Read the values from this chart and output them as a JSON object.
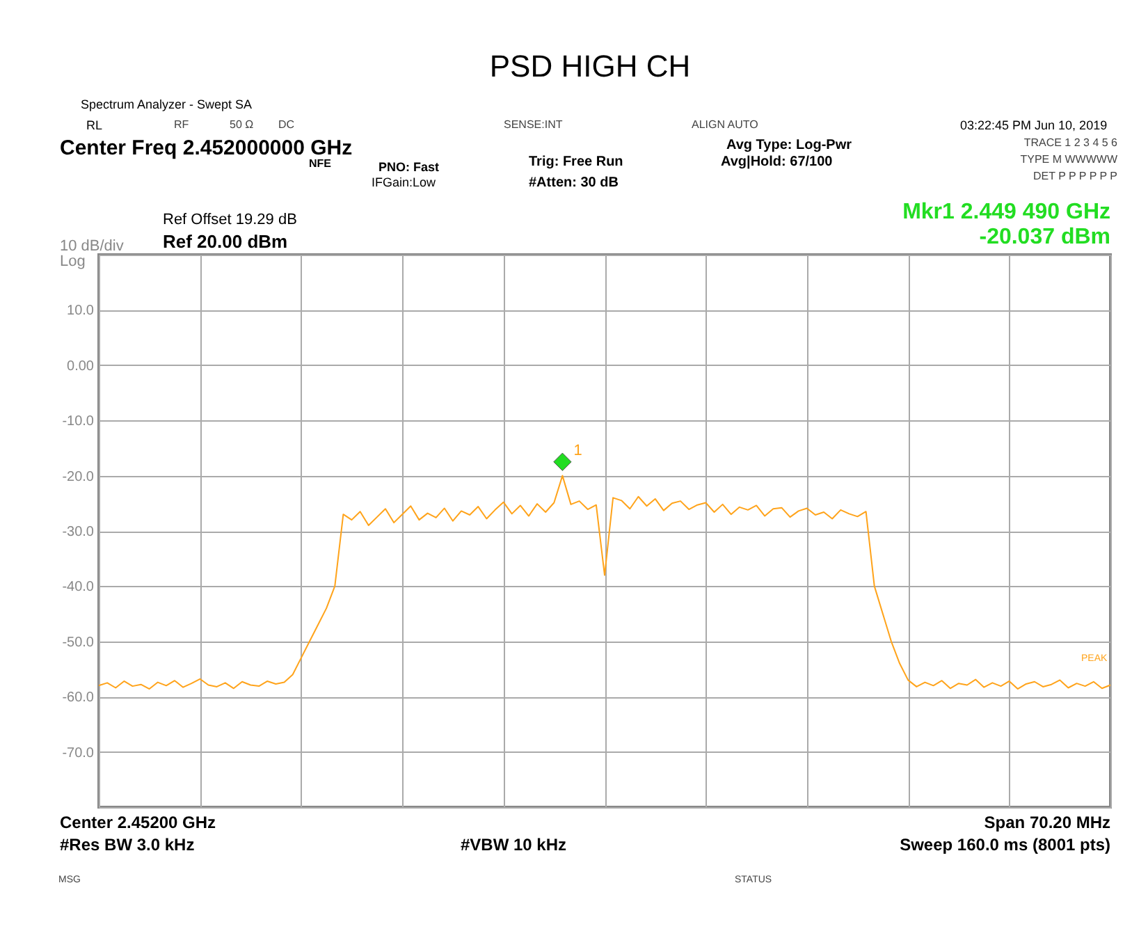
{
  "chart_data": {
    "type": "line",
    "title": "PSD HIGH CH",
    "categories": [
      null,
      null,
      null,
      null,
      null,
      null,
      null,
      null,
      null,
      null,
      null,
      null,
      null,
      null,
      null,
      null,
      null,
      null,
      null,
      null,
      null,
      null,
      null,
      null,
      null,
      null,
      null,
      null,
      null,
      null,
      null,
      null,
      null,
      null,
      null,
      null,
      null,
      null,
      null,
      null,
      null,
      null,
      null,
      null,
      null,
      null,
      null,
      null,
      null,
      null,
      null,
      null,
      null,
      null,
      null,
      null,
      null,
      null,
      null,
      null,
      null,
      null,
      null,
      null,
      null,
      null,
      null,
      null,
      null,
      null,
      null,
      null,
      null,
      null,
      null,
      null,
      null,
      null,
      null,
      null,
      null,
      null,
      null,
      null,
      null,
      null,
      null,
      null,
      null,
      null,
      null,
      null,
      null,
      null,
      null,
      null,
      null,
      null,
      null,
      null,
      null,
      null,
      null,
      null,
      null,
      null,
      null,
      null,
      null,
      null,
      null,
      null,
      null,
      null,
      null,
      null,
      null,
      null,
      null,
      null,
      null
    ],
    "series": [
      {
        "color": "#ffa31a",
        "values": [
          -58,
          -57.5,
          -58.4,
          -57.2,
          -58.1,
          -57.8,
          -58.6,
          -57.4,
          -58,
          -57.1,
          -58.3,
          -57.6,
          -56.8,
          -57.9,
          -58.2,
          -57.5,
          -58.5,
          -57.3,
          -57.9,
          -58.1,
          -57.2,
          -57.7,
          -57.4,
          -56,
          -53,
          -50,
          -47,
          -44,
          -40,
          -27,
          -28,
          -26.5,
          -29,
          -27.5,
          -26,
          -28.5,
          -27,
          -25.5,
          -28,
          -26.8,
          -27.6,
          -25.9,
          -28.2,
          -26.4,
          -27.1,
          -25.6,
          -27.8,
          -26.2,
          -24.8,
          -26.9,
          -25.4,
          -27.3,
          -25.1,
          -26.6,
          -24.9,
          -20,
          -25.2,
          -24.6,
          -26.1,
          -25.3,
          -38,
          -24,
          -24.5,
          -26,
          -23.8,
          -25.5,
          -24.2,
          -26.3,
          -25,
          -24.6,
          -26.1,
          -25.3,
          -24.9,
          -26.6,
          -25.2,
          -27,
          -25.7,
          -26.2,
          -25.4,
          -27.3,
          -26,
          -25.8,
          -27.5,
          -26.4,
          -25.9,
          -27.1,
          -26.6,
          -27.8,
          -26.2,
          -26.9,
          -27.4,
          -26.5,
          -40,
          -45,
          -50,
          -54,
          -57,
          -58.2,
          -57.4,
          -58,
          -57.1,
          -58.5,
          -57.6,
          -57.9,
          -56.9,
          -58.3,
          -57.5,
          -58.1,
          -57.2,
          -58.6,
          -57.7,
          -57.3,
          -58.2,
          -57.8,
          -57,
          -58.4,
          -57.6,
          -58.1,
          -57.3,
          -58.5,
          -57.9
        ]
      },
      {
        "type": "scatter",
        "marker": "diamond",
        "color": "#22dd22",
        "values": [
          null,
          null,
          null,
          null,
          null,
          null,
          null,
          null,
          null,
          null,
          null,
          null,
          null,
          null,
          null,
          null,
          null,
          null,
          null,
          null,
          null,
          null,
          null,
          null,
          null,
          null,
          null,
          null,
          null,
          null,
          null,
          null,
          null,
          null,
          null,
          null,
          null,
          null,
          null,
          null,
          null,
          null,
          null,
          null,
          null,
          null,
          null,
          null,
          null,
          null,
          null,
          null,
          null,
          null,
          null,
          -17.5,
          null,
          null,
          null,
          null,
          null,
          null,
          null,
          null,
          null,
          null,
          null,
          null,
          null,
          null,
          null,
          null,
          null,
          null,
          null,
          null,
          null,
          null,
          null,
          null,
          null,
          null,
          null,
          null,
          null,
          null,
          null,
          null,
          null,
          null,
          null,
          null,
          null,
          null,
          null,
          null,
          null,
          null,
          null,
          null,
          null,
          null,
          null,
          null,
          null,
          null,
          null,
          null,
          null,
          null,
          null,
          null,
          null,
          null,
          null,
          null,
          null,
          null,
          null,
          null,
          null
        ]
      }
    ],
    "ylim": [
      -80,
      20
    ],
    "yticks": [
      {
        "value": 20,
        "label": null
      },
      {
        "value": 10,
        "label": "10.0"
      },
      {
        "value": 0,
        "label": "0.00"
      },
      {
        "value": -10,
        "label": "-10.0"
      },
      {
        "value": -20,
        "label": "-20.0"
      },
      {
        "value": -30,
        "label": "-30.0"
      },
      {
        "value": -40,
        "label": "-40.0"
      },
      {
        "value": -50,
        "label": "-50.0"
      },
      {
        "value": -60,
        "label": "-60.0"
      },
      {
        "value": -70,
        "label": "-70.0"
      },
      {
        "value": -80,
        "label": null
      }
    ],
    "grid": true,
    "tick_labels": "y",
    "line_style": "solid",
    "annotations": [
      "Spectrum Analyzer - Swept SA",
      "RL",
      "RF",
      "50 Ω",
      "DC",
      "SENSE:INT",
      "ALIGN AUTO",
      "03:22:45 PM Jun 10, 2019",
      "Center Freq 2.452000000 GHz",
      "NFE",
      "PNO: Fast",
      "IFGain:Low",
      "Trig: Free Run",
      "#Atten: 30 dB",
      "Avg Type: Log-Pwr",
      "Avg|Hold: 67/100",
      "TRACE 1 2 3 4 5 6",
      "TYPE M WWWWW",
      "DET P P P P P P",
      "Ref Offset 19.29 dB",
      "Ref 20.00 dBm",
      "10 dB/div",
      "Log",
      "Mkr1 2.449 490 GHz",
      "-20.037 dBm",
      "Center 2.45200 GHz",
      "Span 70.20 MHz",
      "#Res BW 3.0 kHz",
      "#VBW 10 kHz",
      "Sweep  160.0 ms (8001 pts)",
      "MSG",
      "STATUS",
      "PEAK",
      "1"
    ]
  }
}
